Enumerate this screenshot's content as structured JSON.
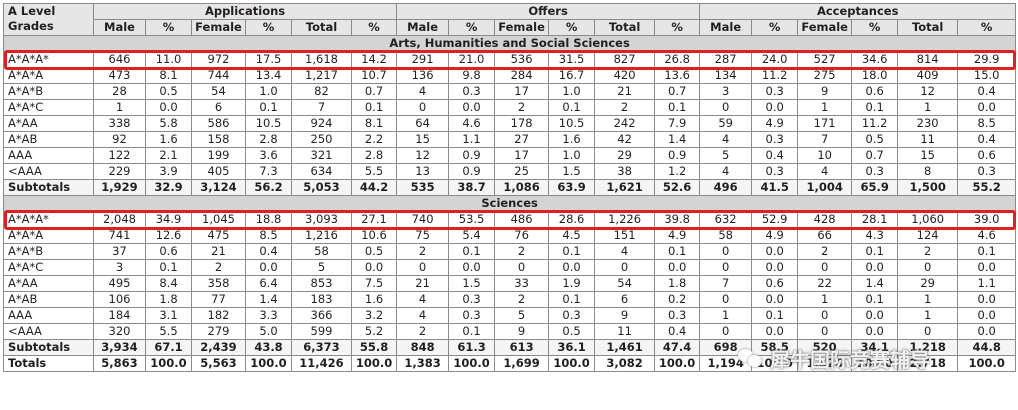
{
  "header": {
    "grades_label": "A Level Grades",
    "groups": [
      "Applications",
      "Offers",
      "Acceptances"
    ],
    "applications_cols": [
      "Male",
      "%",
      "Female",
      "%",
      "Total",
      "%"
    ],
    "offers_cols": [
      "Male",
      "%",
      "Female",
      "%",
      "Total",
      "%"
    ],
    "acceptances_cols": [
      "Male",
      "%",
      "Female",
      "%",
      "Total",
      "%"
    ]
  },
  "sections": [
    {
      "title": "Arts, Humanities and Social Sciences",
      "rows": [
        {
          "grade": "A*A*A*",
          "cells": [
            "646",
            "11.0",
            "972",
            "17.5",
            "1,618",
            "14.2",
            "291",
            "21.0",
            "536",
            "31.5",
            "827",
            "26.8",
            "287",
            "24.0",
            "527",
            "34.6",
            "814",
            "29.9"
          ]
        },
        {
          "grade": "A*A*A",
          "cells": [
            "473",
            "8.1",
            "744",
            "13.4",
            "1,217",
            "10.7",
            "136",
            "9.8",
            "284",
            "16.7",
            "420",
            "13.6",
            "134",
            "11.2",
            "275",
            "18.0",
            "409",
            "15.0"
          ]
        },
        {
          "grade": "A*A*B",
          "cells": [
            "28",
            "0.5",
            "54",
            "1.0",
            "82",
            "0.7",
            "4",
            "0.3",
            "17",
            "1.0",
            "21",
            "0.7",
            "3",
            "0.3",
            "9",
            "0.6",
            "12",
            "0.4"
          ]
        },
        {
          "grade": "A*A*C",
          "cells": [
            "1",
            "0.0",
            "6",
            "0.1",
            "7",
            "0.1",
            "0",
            "0.0",
            "2",
            "0.1",
            "2",
            "0.1",
            "0",
            "0.0",
            "1",
            "0.1",
            "1",
            "0.0"
          ]
        },
        {
          "grade": "A*AA",
          "cells": [
            "338",
            "5.8",
            "586",
            "10.5",
            "924",
            "8.1",
            "64",
            "4.6",
            "178",
            "10.5",
            "242",
            "7.9",
            "59",
            "4.9",
            "171",
            "11.2",
            "230",
            "8.5"
          ]
        },
        {
          "grade": "A*AB",
          "cells": [
            "92",
            "1.6",
            "158",
            "2.8",
            "250",
            "2.2",
            "15",
            "1.1",
            "27",
            "1.6",
            "42",
            "1.4",
            "4",
            "0.3",
            "7",
            "0.5",
            "11",
            "0.4"
          ]
        },
        {
          "grade": "AAA",
          "cells": [
            "122",
            "2.1",
            "199",
            "3.6",
            "321",
            "2.8",
            "12",
            "0.9",
            "17",
            "1.0",
            "29",
            "0.9",
            "5",
            "0.4",
            "10",
            "0.7",
            "15",
            "0.6"
          ]
        },
        {
          "grade": "<AAA",
          "cells": [
            "229",
            "3.9",
            "405",
            "7.3",
            "634",
            "5.5",
            "13",
            "0.9",
            "25",
            "1.5",
            "38",
            "1.2",
            "4",
            "0.3",
            "4",
            "0.3",
            "8",
            "0.3"
          ]
        }
      ],
      "subtotal": {
        "label": "Subtotals",
        "cells": [
          "1,929",
          "32.9",
          "3,124",
          "56.2",
          "5,053",
          "44.2",
          "535",
          "38.7",
          "1,086",
          "63.9",
          "1,621",
          "52.6",
          "496",
          "41.5",
          "1,004",
          "65.9",
          "1,500",
          "55.2"
        ]
      }
    },
    {
      "title": "Sciences",
      "rows": [
        {
          "grade": "A*A*A*",
          "cells": [
            "2,048",
            "34.9",
            "1,045",
            "18.8",
            "3,093",
            "27.1",
            "740",
            "53.5",
            "486",
            "28.6",
            "1,226",
            "39.8",
            "632",
            "52.9",
            "428",
            "28.1",
            "1,060",
            "39.0"
          ]
        },
        {
          "grade": "A*A*A",
          "cells": [
            "741",
            "12.6",
            "475",
            "8.5",
            "1,216",
            "10.6",
            "75",
            "5.4",
            "76",
            "4.5",
            "151",
            "4.9",
            "58",
            "4.9",
            "66",
            "4.3",
            "124",
            "4.6"
          ]
        },
        {
          "grade": "A*A*B",
          "cells": [
            "37",
            "0.6",
            "21",
            "0.4",
            "58",
            "0.5",
            "2",
            "0.1",
            "2",
            "0.1",
            "4",
            "0.1",
            "0",
            "0.0",
            "2",
            "0.1",
            "2",
            "0.1"
          ]
        },
        {
          "grade": "A*A*C",
          "cells": [
            "3",
            "0.1",
            "2",
            "0.0",
            "5",
            "0.0",
            "0",
            "0.0",
            "0",
            "0.0",
            "0",
            "0.0",
            "0",
            "0.0",
            "0",
            "0.0",
            "0",
            "0.0"
          ]
        },
        {
          "grade": "A*AA",
          "cells": [
            "495",
            "8.4",
            "358",
            "6.4",
            "853",
            "7.5",
            "21",
            "1.5",
            "33",
            "1.9",
            "54",
            "1.8",
            "7",
            "0.6",
            "22",
            "1.4",
            "29",
            "1.1"
          ]
        },
        {
          "grade": "A*AB",
          "cells": [
            "106",
            "1.8",
            "77",
            "1.4",
            "183",
            "1.6",
            "4",
            "0.3",
            "2",
            "0.1",
            "6",
            "0.2",
            "0",
            "0.0",
            "1",
            "0.1",
            "1",
            "0.0"
          ]
        },
        {
          "grade": "AAA",
          "cells": [
            "184",
            "3.1",
            "182",
            "3.3",
            "366",
            "3.2",
            "4",
            "0.3",
            "5",
            "0.3",
            "9",
            "0.3",
            "1",
            "0.1",
            "0",
            "0.0",
            "1",
            "0.0"
          ]
        },
        {
          "grade": "<AAA",
          "cells": [
            "320",
            "5.5",
            "279",
            "5.0",
            "599",
            "5.2",
            "2",
            "0.1",
            "9",
            "0.5",
            "11",
            "0.4",
            "0",
            "0.0",
            "0",
            "0.0",
            "0",
            "0.0"
          ]
        }
      ],
      "subtotal": {
        "label": "Subtotals",
        "cells": [
          "3,934",
          "67.1",
          "2,439",
          "43.8",
          "6,373",
          "55.8",
          "848",
          "61.3",
          "613",
          "36.1",
          "1,461",
          "47.4",
          "698",
          "58.5",
          "520",
          "34.1",
          "1,218",
          "44.8"
        ]
      }
    }
  ],
  "totals": {
    "label": "Totals",
    "cells": [
      "5,863",
      "100.0",
      "5,563",
      "100.0",
      "11,426",
      "100.0",
      "1,383",
      "100.0",
      "1,699",
      "100.0",
      "3,082",
      "100.0",
      "1,194",
      "100.0",
      "1,524",
      "100.0",
      "2,718",
      "100.0"
    ]
  },
  "watermark": {
    "text": "犀牛国际竞赛辅导",
    "icon": "wechat-icon"
  },
  "highlight_color": "#e02020"
}
